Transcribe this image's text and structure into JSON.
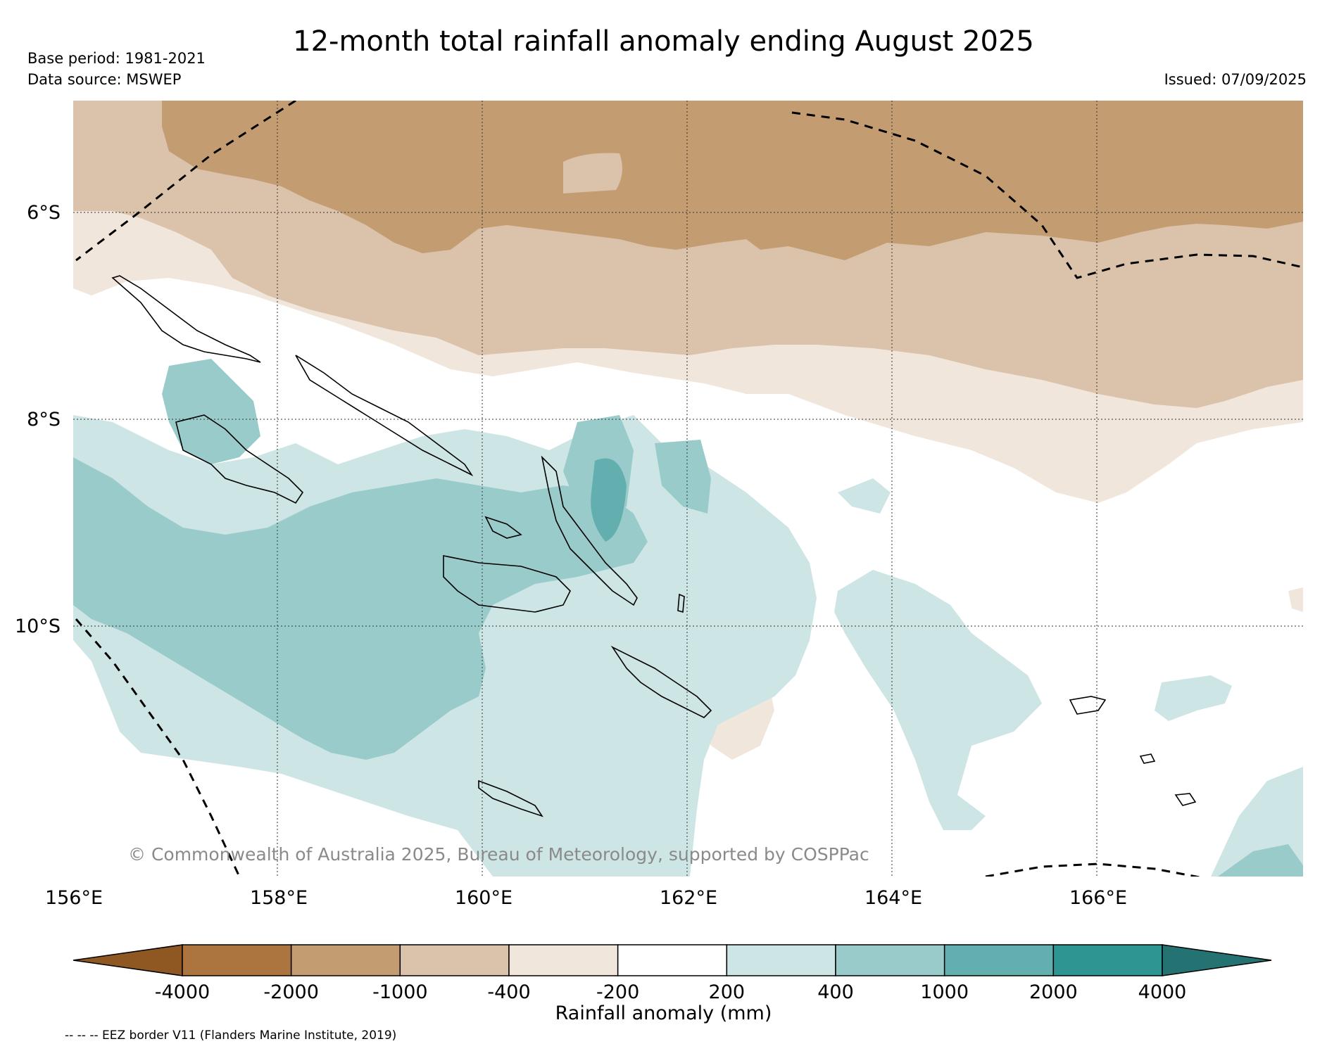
{
  "title": "12-month total rainfall anomaly ending August 2025",
  "base_period": "Base period: 1981-2021",
  "data_source": "Data source: MSWEP",
  "issued": "Issued: 07/09/2025",
  "copyright": "© Commonwealth of Australia 2025, Bureau of Meteorology, supported by COSPPac",
  "axes": {
    "lat_labels": [
      "6°S",
      "8°S",
      "10°S"
    ],
    "lon_labels": [
      "156°E",
      "158°E",
      "160°E",
      "162°E",
      "164°E",
      "166°E"
    ]
  },
  "colorbar": {
    "title": "Rainfall anomaly (mm)",
    "ticks": [
      "-4000",
      "-2000",
      "-1000",
      "-400",
      "-200",
      "200",
      "400",
      "1000",
      "2000",
      "4000"
    ],
    "colors": [
      "#8f5822",
      "#ac7540",
      "#c49c72",
      "#dbc2aa",
      "#f1e6dc",
      "#ffffff",
      "#cde5e4",
      "#9acbcb",
      "#63afb0",
      "#2e9593",
      "#247372"
    ]
  },
  "legend_note": "-- -- -- EEZ border V11 (Flanders Marine Institute, 2019)",
  "palette": {
    "dry_strong": "#c49c72",
    "dry_moderate": "#dbc2aa",
    "dry_light": "#f1e6dc",
    "wet_light": "#cde5e4",
    "wet_moderate": "#9acbcb",
    "wet_strong": "#63afb0"
  }
}
